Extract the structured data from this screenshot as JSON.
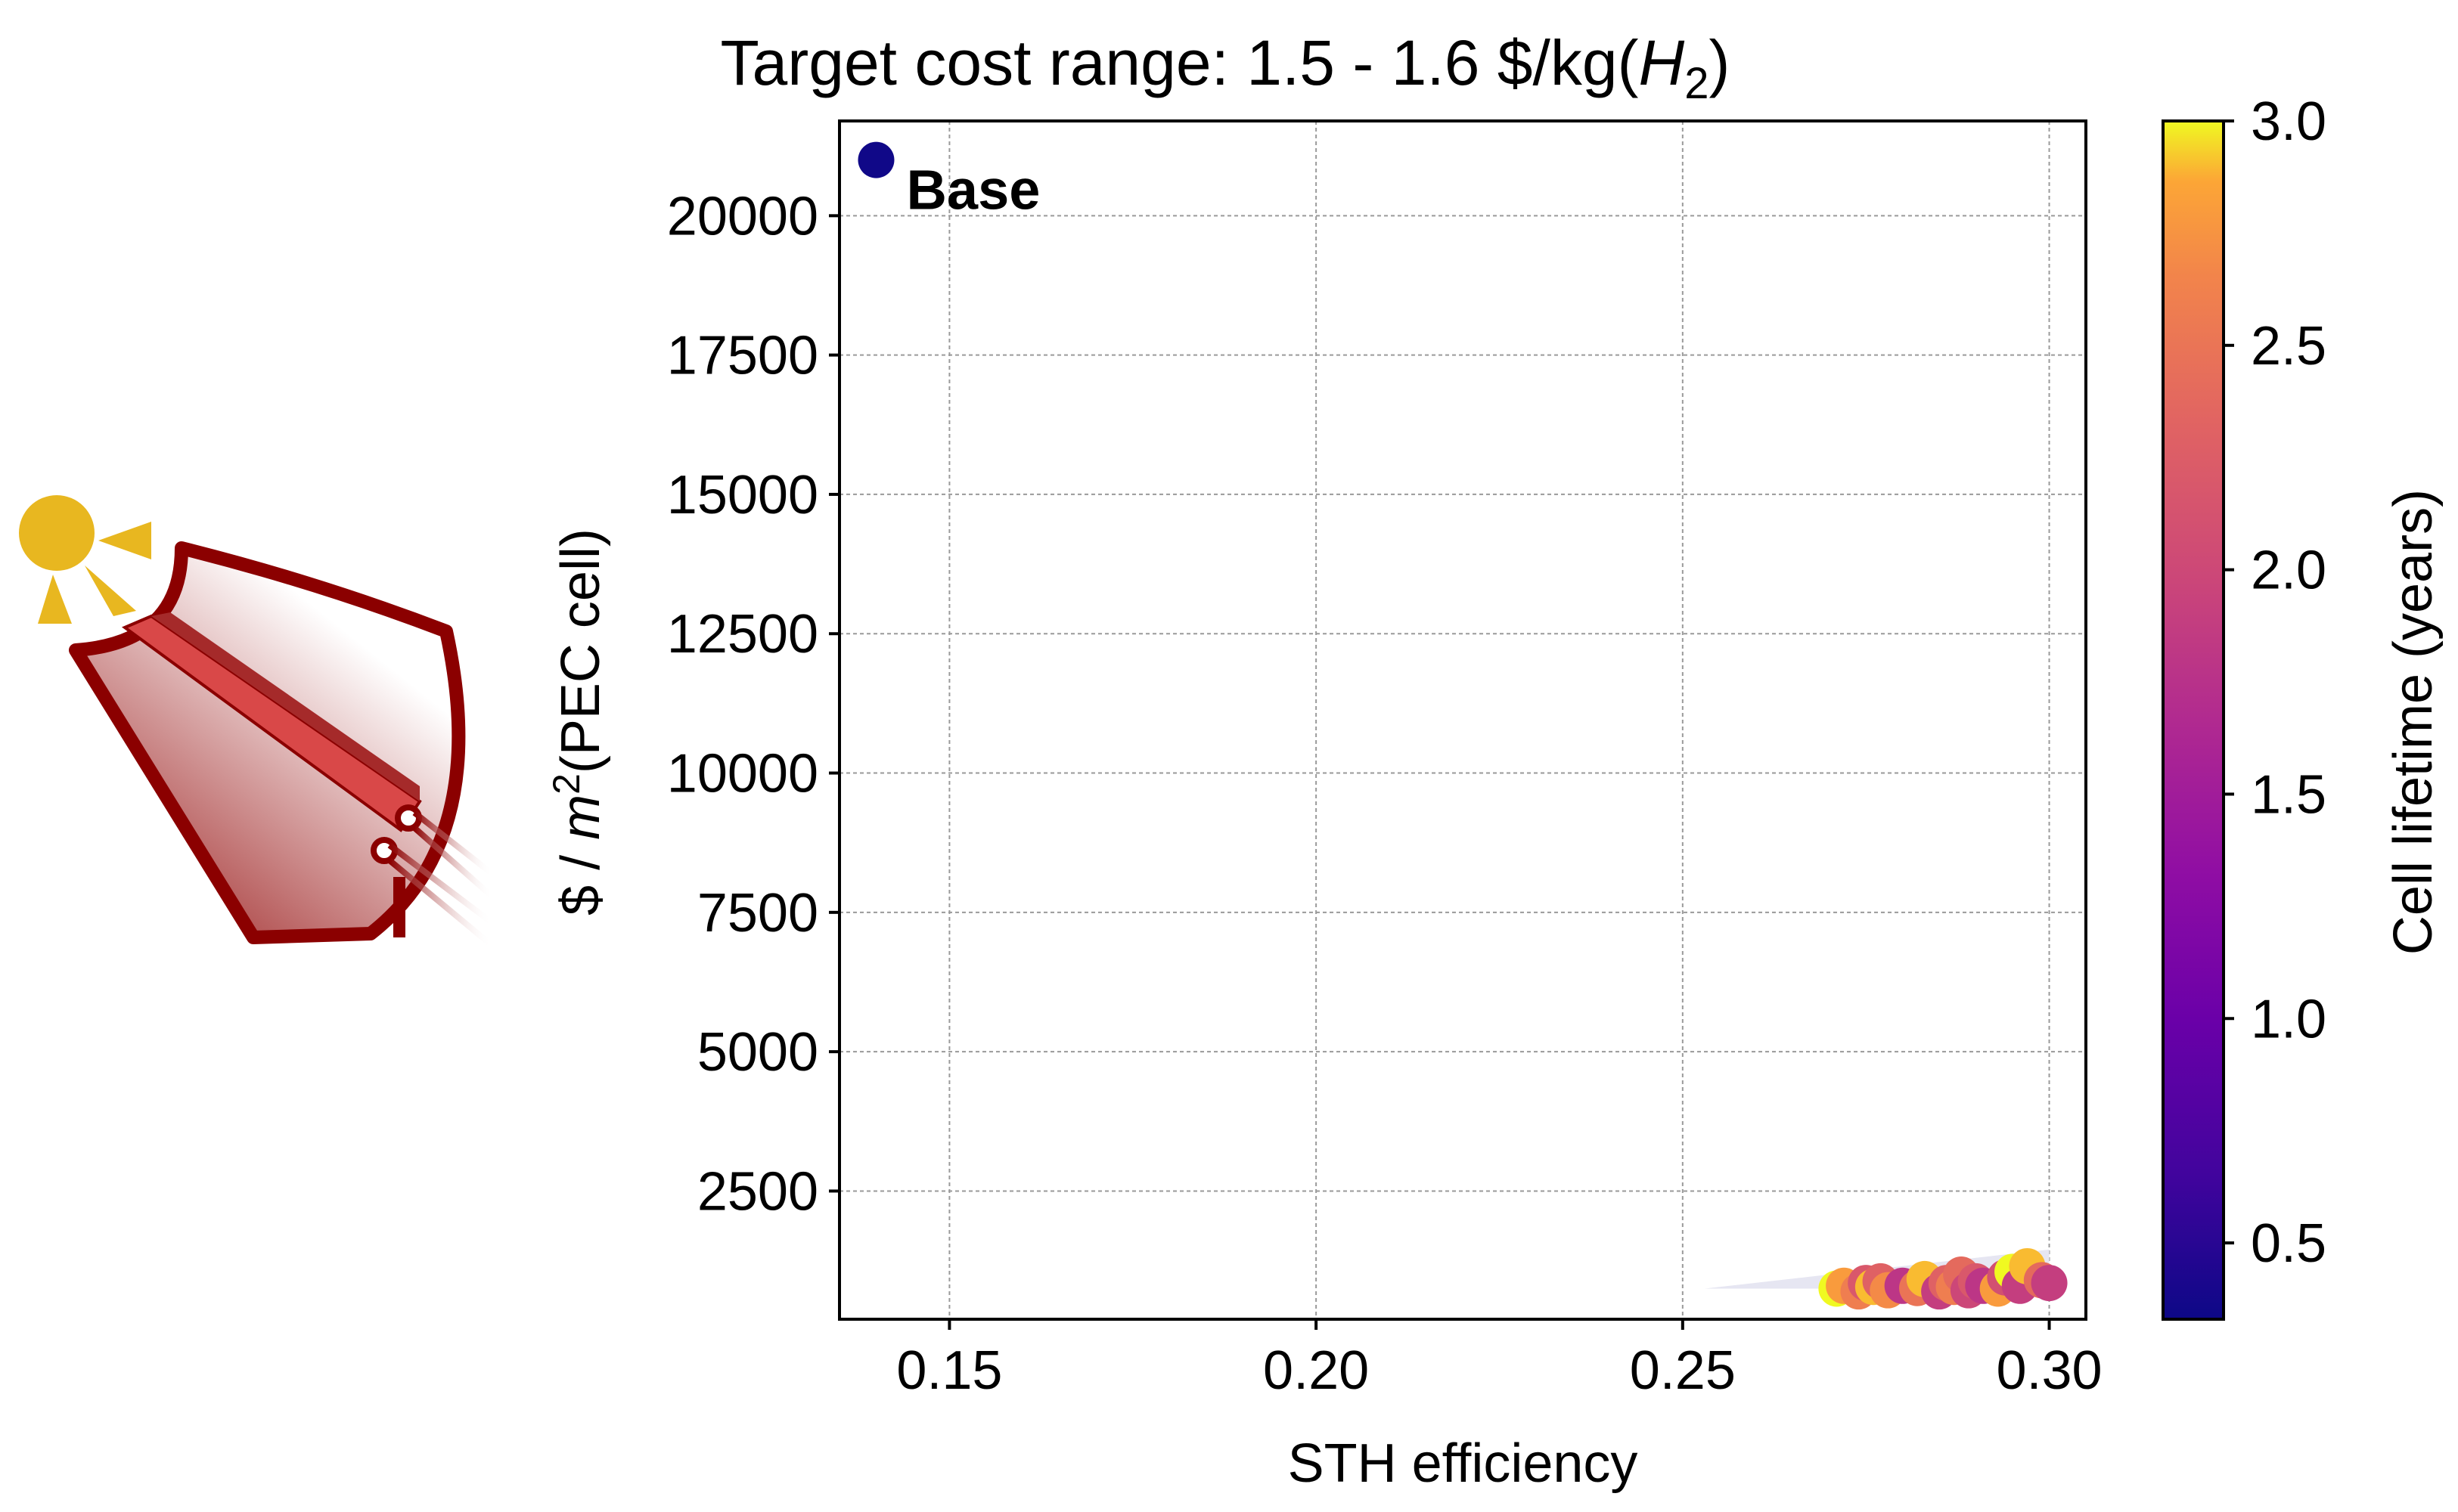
{
  "chart_data": {
    "type": "scatter",
    "title_prefix": "Target cost range: 1.5 - 1.6 $/kg(",
    "title_var": "H",
    "title_sub": "2",
    "title_suffix": ")",
    "xlabel": "STH efficiency",
    "ylabel_prefix": "$ / ",
    "ylabel_var": "m",
    "ylabel_sup": "2",
    "ylabel_suffix": "(PEC cell)",
    "xlim": [
      0.135,
      0.305
    ],
    "ylim": [
      200,
      21700
    ],
    "xticks": [
      "0.15",
      "0.20",
      "0.25",
      "0.30"
    ],
    "xtick_values": [
      0.15,
      0.2,
      0.25,
      0.3
    ],
    "yticks": [
      "2500",
      "5000",
      "7500",
      "10000",
      "12500",
      "15000",
      "17500",
      "20000"
    ],
    "ytick_values": [
      2500,
      5000,
      7500,
      10000,
      12500,
      15000,
      17500,
      20000
    ],
    "grid": true,
    "base_point": {
      "label": "Base",
      "x": 0.14,
      "y": 21000,
      "lifetime": 0.35
    },
    "shaded_region": [
      [
        0.253,
        750
      ],
      [
        0.3,
        1450
      ],
      [
        0.3,
        750
      ]
    ],
    "points": [
      {
        "x": 0.271,
        "y": 750,
        "lifetime": 3.0
      },
      {
        "x": 0.272,
        "y": 800,
        "lifetime": 2.8
      },
      {
        "x": 0.274,
        "y": 700,
        "lifetime": 2.6
      },
      {
        "x": 0.275,
        "y": 850,
        "lifetime": 2.2
      },
      {
        "x": 0.276,
        "y": 780,
        "lifetime": 2.9
      },
      {
        "x": 0.277,
        "y": 880,
        "lifetime": 2.3
      },
      {
        "x": 0.278,
        "y": 720,
        "lifetime": 2.7
      },
      {
        "x": 0.28,
        "y": 800,
        "lifetime": 1.8
      },
      {
        "x": 0.282,
        "y": 760,
        "lifetime": 2.5
      },
      {
        "x": 0.283,
        "y": 920,
        "lifetime": 2.9
      },
      {
        "x": 0.285,
        "y": 700,
        "lifetime": 1.9
      },
      {
        "x": 0.286,
        "y": 850,
        "lifetime": 2.3
      },
      {
        "x": 0.287,
        "y": 780,
        "lifetime": 2.6
      },
      {
        "x": 0.288,
        "y": 1000,
        "lifetime": 2.4
      },
      {
        "x": 0.289,
        "y": 720,
        "lifetime": 2.0
      },
      {
        "x": 0.29,
        "y": 880,
        "lifetime": 2.2
      },
      {
        "x": 0.291,
        "y": 800,
        "lifetime": 1.8
      },
      {
        "x": 0.293,
        "y": 750,
        "lifetime": 2.8
      },
      {
        "x": 0.294,
        "y": 950,
        "lifetime": 2.1
      },
      {
        "x": 0.295,
        "y": 1050,
        "lifetime": 3.0
      },
      {
        "x": 0.296,
        "y": 800,
        "lifetime": 1.9
      },
      {
        "x": 0.297,
        "y": 1150,
        "lifetime": 2.9
      },
      {
        "x": 0.299,
        "y": 900,
        "lifetime": 2.4
      },
      {
        "x": 0.3,
        "y": 850,
        "lifetime": 1.9
      }
    ],
    "colorbar": {
      "label": "Cell lifetime (years)",
      "range": [
        0.33,
        3.0
      ],
      "ticks": [
        "0.5",
        "1.0",
        "1.5",
        "2.0",
        "2.5",
        "3.0"
      ],
      "tick_values": [
        0.5,
        1.0,
        1.5,
        2.0,
        2.5,
        3.0
      ],
      "colormap": "plasma"
    }
  },
  "colors": {
    "sun": "#e8b720",
    "device_dark": "#8b0000",
    "device_mid": "#d94848",
    "shade": "#e6e6f2",
    "grid": "#9a9a9a"
  }
}
